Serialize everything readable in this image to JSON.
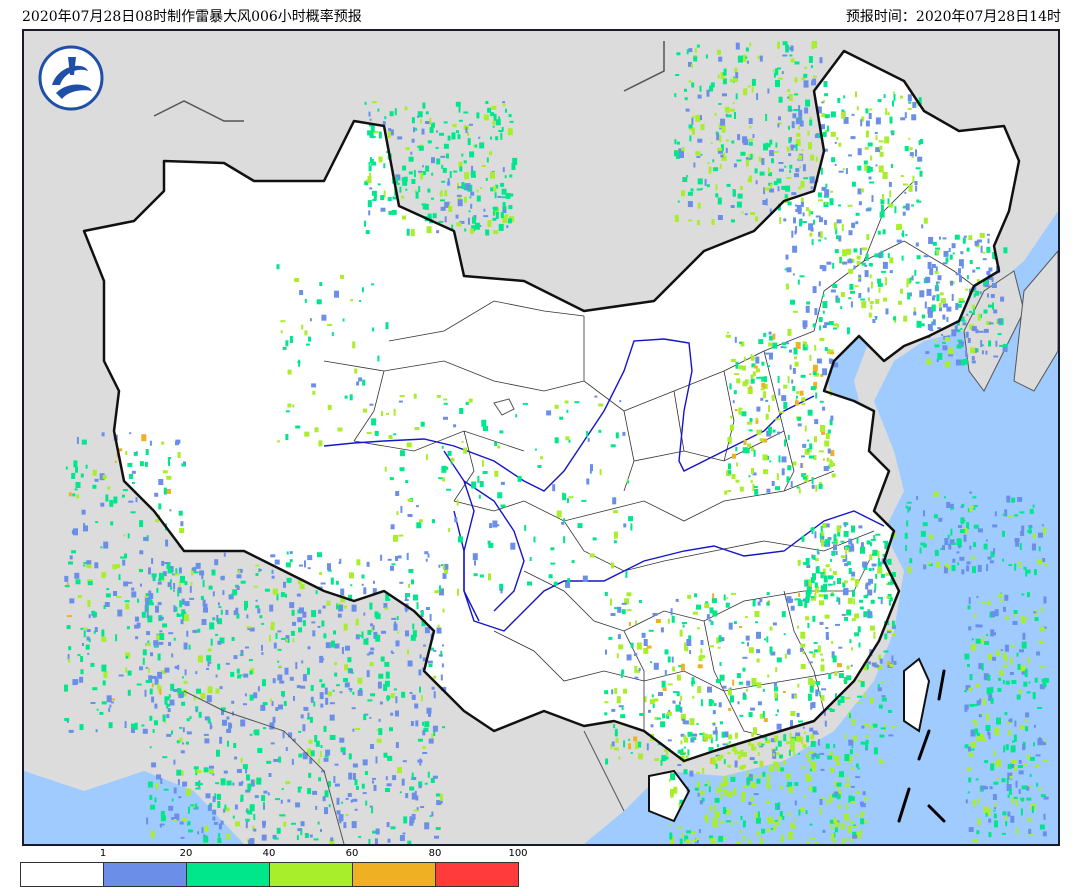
{
  "header": {
    "left_title": "2020年07月28日08时制作雷暴大风006小时概率预报",
    "right_title": "预报时间：2020年07月28日14时"
  },
  "legend": {
    "ticks": [
      "1",
      "20",
      "40",
      "60",
      "80",
      "100"
    ],
    "bins": [
      {
        "range": "0-1",
        "color": "#ffffff"
      },
      {
        "range": "1-20",
        "color": "#6b8fe8"
      },
      {
        "range": "20-40",
        "color": "#00e68a"
      },
      {
        "range": "40-60",
        "color": "#a8ee2a"
      },
      {
        "range": "60-80",
        "color": "#f0b024"
      },
      {
        "range": "80-100",
        "color": "#ff3b3b"
      }
    ]
  },
  "map": {
    "land_color": "#dcdcdc",
    "sea_color": "#9fcbff",
    "china_fill": "#ffffff",
    "border_color": "#111111",
    "river_color": "#1414cc"
  },
  "logo": {
    "name": "cma-logo",
    "color": "#1f4fa8"
  }
}
